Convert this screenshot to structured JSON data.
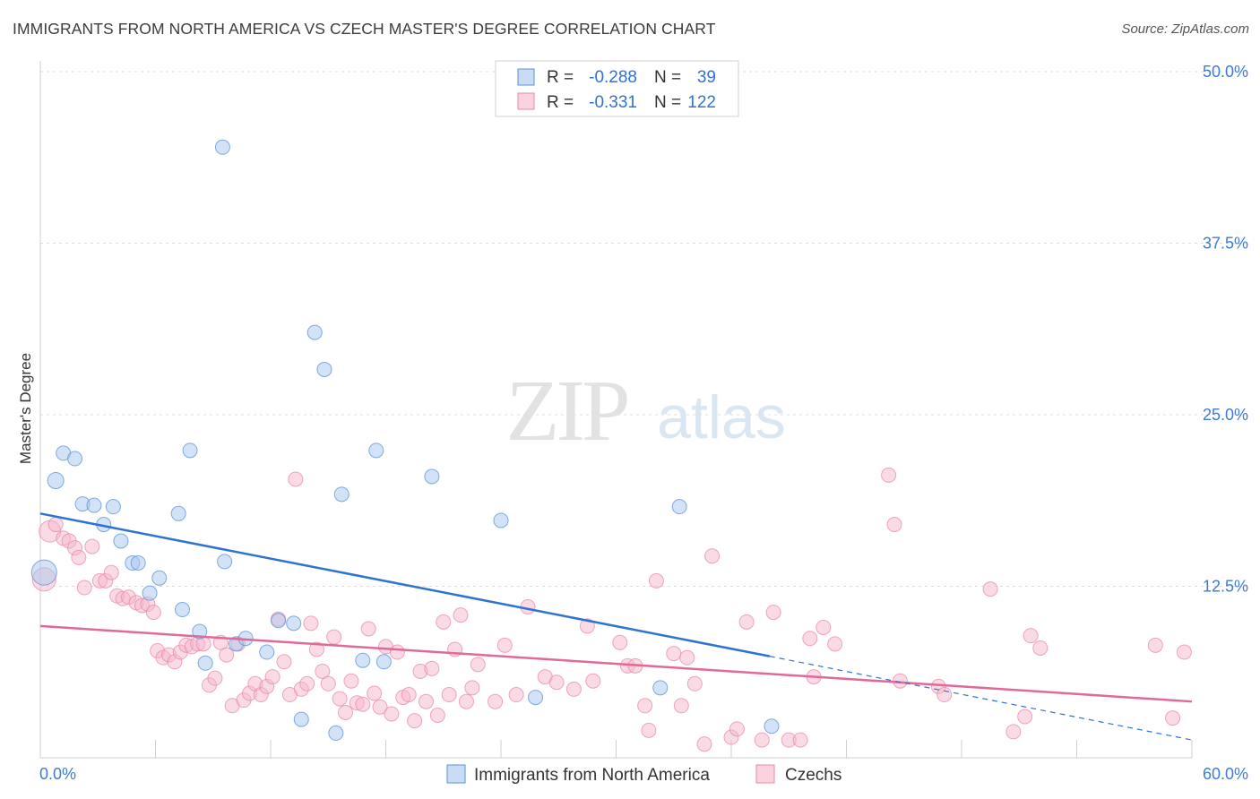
{
  "header": {
    "title": "IMMIGRANTS FROM NORTH AMERICA VS CZECH MASTER'S DEGREE CORRELATION CHART",
    "source": "Source: ZipAtlas.com"
  },
  "watermark": {
    "zip": "ZIP",
    "atlas": "atlas"
  },
  "chart_data": {
    "type": "scatter",
    "title": "IMMIGRANTS FROM NORTH AMERICA VS CZECH MASTER'S DEGREE CORRELATION CHART",
    "xlabel": "",
    "ylabel": "Master's Degree",
    "xlim": [
      0,
      60
    ],
    "ylim": [
      0,
      50
    ],
    "x_tick_labels": [
      "0.0%",
      "60.0%"
    ],
    "y_ticks": [
      12.5,
      25.0,
      37.5,
      50.0
    ],
    "y_tick_labels": [
      "12.5%",
      "25.0%",
      "37.5%",
      "50.0%"
    ],
    "grid": true,
    "legend": {
      "position": "top-center",
      "rows": [
        {
          "r_label": "R =",
          "r_value": "-0.288",
          "n_label": "N =",
          "n_value": "39"
        },
        {
          "r_label": "R =",
          "r_value": "-0.331",
          "n_label": "N =",
          "n_value": "122"
        }
      ]
    },
    "series": [
      {
        "name": "Immigrants from North America",
        "color": "#a8c8ef",
        "edge": "#5b8fd6",
        "line_color": "#2f73d2",
        "trend": {
          "x0": 0,
          "y0": 17.8,
          "x1": 38,
          "y1": 7.4,
          "dash_x1": 60,
          "dash_y1": 1.3
        },
        "points": [
          [
            0.2,
            13.5,
            14
          ],
          [
            0.8,
            20.2,
            9
          ],
          [
            1.2,
            22.2,
            8
          ],
          [
            1.8,
            21.8,
            8
          ],
          [
            2.2,
            18.5,
            8
          ],
          [
            2.8,
            18.4,
            8
          ],
          [
            3.3,
            17.0,
            8
          ],
          [
            3.8,
            18.3,
            8
          ],
          [
            4.2,
            15.8,
            8
          ],
          [
            4.8,
            14.2,
            8
          ],
          [
            5.1,
            14.2,
            8
          ],
          [
            5.7,
            12.0,
            8
          ],
          [
            6.2,
            13.1,
            8
          ],
          [
            7.2,
            17.8,
            8
          ],
          [
            7.4,
            10.8,
            8
          ],
          [
            7.8,
            22.4,
            8
          ],
          [
            8.3,
            9.2,
            8
          ],
          [
            8.6,
            6.9,
            8
          ],
          [
            9.5,
            44.5,
            8
          ],
          [
            9.6,
            14.3,
            8
          ],
          [
            10.2,
            8.3,
            8
          ],
          [
            10.7,
            8.7,
            8
          ],
          [
            11.8,
            7.7,
            8
          ],
          [
            12.4,
            10.0,
            8
          ],
          [
            13.2,
            9.8,
            8
          ],
          [
            13.6,
            2.8,
            8
          ],
          [
            14.3,
            31.0,
            8
          ],
          [
            14.8,
            28.3,
            8
          ],
          [
            15.4,
            1.8,
            8
          ],
          [
            15.7,
            19.2,
            8
          ],
          [
            16.8,
            7.1,
            8
          ],
          [
            17.5,
            22.4,
            8
          ],
          [
            17.9,
            7.0,
            8
          ],
          [
            20.4,
            20.5,
            8
          ],
          [
            24.0,
            17.3,
            8
          ],
          [
            25.8,
            4.4,
            8
          ],
          [
            32.3,
            5.1,
            8
          ],
          [
            33.3,
            18.3,
            8
          ],
          [
            38.1,
            2.3,
            8
          ]
        ]
      },
      {
        "name": "Czechs",
        "color": "#f6b8cc",
        "edge": "#e88aa8",
        "line_color": "#e0699a",
        "trend": {
          "x0": 0,
          "y0": 9.6,
          "x1": 60,
          "y1": 4.1
        },
        "points": [
          [
            0.2,
            13.0,
            13
          ],
          [
            0.5,
            16.5,
            12
          ],
          [
            0.8,
            17.0,
            8
          ],
          [
            1.2,
            16.0,
            8
          ],
          [
            1.5,
            15.8,
            8
          ],
          [
            1.8,
            15.3,
            8
          ],
          [
            2.0,
            14.6,
            8
          ],
          [
            2.3,
            12.4,
            8
          ],
          [
            2.7,
            15.4,
            8
          ],
          [
            3.1,
            12.9,
            8
          ],
          [
            3.4,
            12.9,
            8
          ],
          [
            3.7,
            13.5,
            8
          ],
          [
            4.0,
            11.8,
            8
          ],
          [
            4.3,
            11.6,
            8
          ],
          [
            4.6,
            11.7,
            8
          ],
          [
            5.0,
            11.3,
            8
          ],
          [
            5.3,
            11.1,
            8
          ],
          [
            5.6,
            11.2,
            8
          ],
          [
            5.9,
            10.6,
            8
          ],
          [
            6.1,
            7.8,
            8
          ],
          [
            6.4,
            7.3,
            8
          ],
          [
            6.7,
            7.5,
            8
          ],
          [
            7.0,
            7.0,
            8
          ],
          [
            7.3,
            7.7,
            8
          ],
          [
            7.6,
            8.2,
            8
          ],
          [
            7.9,
            8.1,
            8
          ],
          [
            8.2,
            8.3,
            8
          ],
          [
            8.5,
            8.3,
            8
          ],
          [
            8.8,
            5.3,
            8
          ],
          [
            9.1,
            5.8,
            8
          ],
          [
            9.4,
            8.4,
            8
          ],
          [
            9.7,
            7.5,
            8
          ],
          [
            10.0,
            3.8,
            8
          ],
          [
            10.3,
            8.3,
            8
          ],
          [
            10.6,
            4.2,
            8
          ],
          [
            10.9,
            4.7,
            8
          ],
          [
            11.2,
            5.4,
            8
          ],
          [
            11.5,
            4.6,
            8
          ],
          [
            11.8,
            5.2,
            8
          ],
          [
            12.1,
            5.9,
            8
          ],
          [
            12.4,
            10.1,
            8
          ],
          [
            12.7,
            7.0,
            8
          ],
          [
            13.0,
            4.6,
            8
          ],
          [
            13.3,
            20.3,
            8
          ],
          [
            13.6,
            5.0,
            8
          ],
          [
            13.9,
            5.4,
            8
          ],
          [
            14.1,
            9.8,
            8
          ],
          [
            14.4,
            7.9,
            8
          ],
          [
            14.7,
            6.3,
            8
          ],
          [
            15.0,
            5.4,
            8
          ],
          [
            15.3,
            8.8,
            8
          ],
          [
            15.6,
            4.3,
            8
          ],
          [
            15.9,
            3.3,
            8
          ],
          [
            16.2,
            5.6,
            8
          ],
          [
            16.5,
            4.0,
            8
          ],
          [
            16.8,
            3.9,
            8
          ],
          [
            17.1,
            9.4,
            8
          ],
          [
            17.4,
            4.7,
            8
          ],
          [
            17.7,
            3.7,
            8
          ],
          [
            18.0,
            8.1,
            8
          ],
          [
            18.3,
            3.2,
            8
          ],
          [
            18.6,
            7.7,
            8
          ],
          [
            18.9,
            4.4,
            8
          ],
          [
            19.2,
            4.6,
            8
          ],
          [
            19.5,
            2.7,
            8
          ],
          [
            19.8,
            6.3,
            8
          ],
          [
            20.1,
            4.1,
            8
          ],
          [
            20.4,
            6.5,
            8
          ],
          [
            20.7,
            3.1,
            8
          ],
          [
            21.0,
            9.9,
            8
          ],
          [
            21.3,
            4.6,
            8
          ],
          [
            21.6,
            7.9,
            8
          ],
          [
            21.9,
            10.4,
            8
          ],
          [
            22.2,
            4.1,
            8
          ],
          [
            22.5,
            5.1,
            8
          ],
          [
            22.8,
            6.8,
            8
          ],
          [
            23.7,
            4.1,
            8
          ],
          [
            24.2,
            8.2,
            8
          ],
          [
            24.8,
            4.6,
            8
          ],
          [
            25.4,
            11.0,
            8
          ],
          [
            26.3,
            5.9,
            8
          ],
          [
            26.9,
            5.5,
            8
          ],
          [
            27.8,
            5.0,
            8
          ],
          [
            28.5,
            9.6,
            8
          ],
          [
            28.8,
            5.6,
            8
          ],
          [
            30.2,
            8.4,
            8
          ],
          [
            30.6,
            6.7,
            8
          ],
          [
            31.0,
            6.7,
            8
          ],
          [
            31.5,
            3.8,
            8
          ],
          [
            31.7,
            2.0,
            8
          ],
          [
            32.1,
            12.9,
            8
          ],
          [
            33.0,
            7.6,
            8
          ],
          [
            33.4,
            3.8,
            8
          ],
          [
            33.7,
            7.3,
            8
          ],
          [
            34.1,
            5.4,
            8
          ],
          [
            34.6,
            1.0,
            8
          ],
          [
            35.0,
            14.7,
            8
          ],
          [
            36.0,
            1.5,
            8
          ],
          [
            36.3,
            2.1,
            8
          ],
          [
            36.8,
            9.9,
            8
          ],
          [
            37.6,
            1.3,
            8
          ],
          [
            38.2,
            10.6,
            8
          ],
          [
            39.0,
            1.3,
            8
          ],
          [
            39.6,
            1.3,
            8
          ],
          [
            40.1,
            8.7,
            8
          ],
          [
            40.3,
            5.9,
            8
          ],
          [
            40.8,
            9.5,
            8
          ],
          [
            41.4,
            8.3,
            8
          ],
          [
            44.2,
            20.6,
            8
          ],
          [
            44.5,
            17.0,
            8
          ],
          [
            44.8,
            5.6,
            8
          ],
          [
            46.8,
            5.2,
            8
          ],
          [
            47.1,
            4.6,
            8
          ],
          [
            49.5,
            12.3,
            8
          ],
          [
            50.7,
            1.9,
            8
          ],
          [
            51.3,
            3.0,
            8
          ],
          [
            51.6,
            8.9,
            8
          ],
          [
            52.1,
            8.0,
            8
          ],
          [
            58.1,
            8.2,
            8
          ],
          [
            59.0,
            2.9,
            8
          ],
          [
            59.6,
            7.7,
            8
          ]
        ]
      }
    ]
  }
}
